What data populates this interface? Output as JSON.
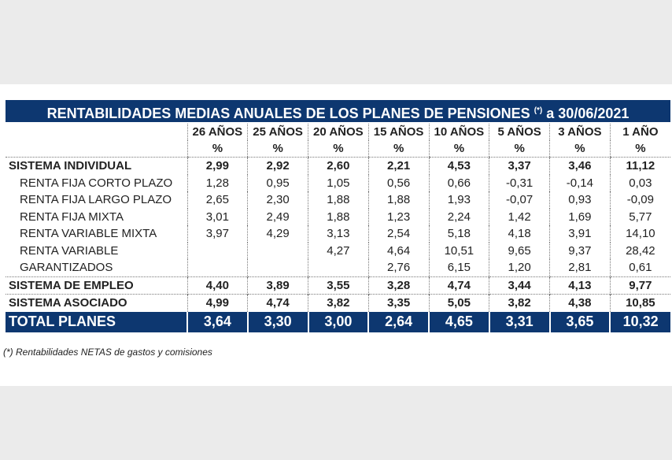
{
  "title": {
    "text": "RENTABILIDADES MEDIAS ANUALES DE LOS PLANES DE PENSIONES",
    "mark": "(*)",
    "date": "a 30/06/2021"
  },
  "columns": [
    "26 AÑOS",
    "25 AÑOS",
    "20 AÑOS",
    "15 AÑOS",
    "10 AÑOS",
    "5 AÑOS",
    "3 AÑOS",
    "1 AÑO"
  ],
  "unit": "%",
  "rows": [
    {
      "label": "SISTEMA INDIVIDUAL",
      "values": [
        "2,99",
        "2,92",
        "2,60",
        "2,21",
        "4,53",
        "3,37",
        "3,46",
        "11,12"
      ]
    },
    {
      "label": "RENTA FIJA CORTO PLAZO",
      "values": [
        "1,28",
        "0,95",
        "1,05",
        "0,56",
        "0,66",
        "-0,31",
        "-0,14",
        "0,03"
      ]
    },
    {
      "label": "RENTA FIJA LARGO PLAZO",
      "values": [
        "2,65",
        "2,30",
        "1,88",
        "1,88",
        "1,93",
        "-0,07",
        "0,93",
        "-0,09"
      ]
    },
    {
      "label": "RENTA FIJA MIXTA",
      "values": [
        "3,01",
        "2,49",
        "1,88",
        "1,23",
        "2,24",
        "1,42",
        "1,69",
        "5,77"
      ]
    },
    {
      "label": "RENTA VARIABLE MIXTA",
      "values": [
        "3,97",
        "4,29",
        "3,13",
        "2,54",
        "5,18",
        "4,18",
        "3,91",
        "14,10"
      ]
    },
    {
      "label": "RENTA VARIABLE",
      "values": [
        "",
        "",
        "4,27",
        "4,64",
        "10,51",
        "9,65",
        "9,37",
        "28,42"
      ]
    },
    {
      "label": "GARANTIZADOS",
      "values": [
        "",
        "",
        "",
        "2,76",
        "6,15",
        "1,20",
        "2,81",
        "0,61"
      ]
    },
    {
      "label": "SISTEMA DE EMPLEO",
      "values": [
        "4,40",
        "3,89",
        "3,55",
        "3,28",
        "4,74",
        "3,44",
        "4,13",
        "9,77"
      ]
    },
    {
      "label": "SISTEMA ASOCIADO",
      "values": [
        "4,99",
        "4,74",
        "3,82",
        "3,35",
        "5,05",
        "3,82",
        "4,38",
        "10,85"
      ]
    },
    {
      "label": "TOTAL PLANES",
      "values": [
        "3,64",
        "3,30",
        "3,00",
        "2,64",
        "4,65",
        "3,31",
        "3,65",
        "10,32"
      ]
    }
  ],
  "footnote": "(*) Rentabilidades NETAS de gastos y comisiones",
  "colors": {
    "header_bg": "#0d3770",
    "page_bg": "#ebebeb"
  }
}
